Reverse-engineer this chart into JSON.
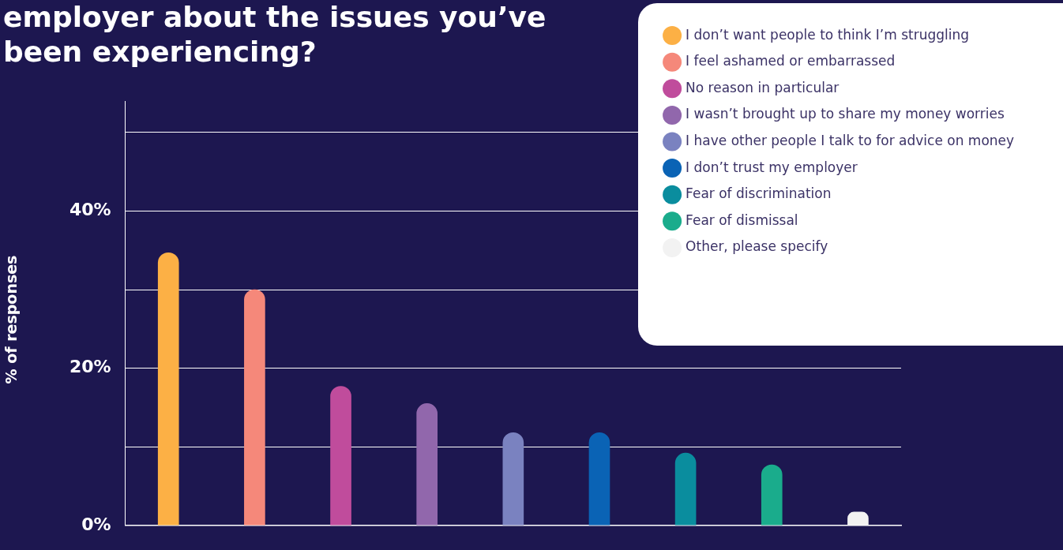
{
  "chart_data": {
    "type": "bar",
    "title": "employer about the issues you’ve been experiencing?",
    "ylabel": "% of responses",
    "categories": [
      null,
      null,
      null,
      null,
      null,
      null,
      null,
      null,
      null
    ],
    "series": [
      {
        "name": "I don’t want people to think I’m struggling",
        "color": "#fcb045",
        "values": [
          34.7,
          null,
          null,
          null,
          null,
          null,
          null,
          null,
          null
        ]
      },
      {
        "name": "I feel ashamed or embarrassed",
        "color": "#f5887a",
        "values": [
          null,
          30,
          null,
          null,
          null,
          null,
          null,
          null,
          null
        ]
      },
      {
        "name": "No reason in particular",
        "color": "#c04c9c",
        "values": [
          null,
          null,
          17.7,
          null,
          null,
          null,
          null,
          null,
          null
        ]
      },
      {
        "name": "I wasn’t brought up to share my money worries",
        "color": "#9167ac",
        "values": [
          null,
          null,
          null,
          15.5,
          null,
          null,
          null,
          null,
          null
        ]
      },
      {
        "name": "I have other people I talk to for advice on money",
        "color": "#7a82c0",
        "values": [
          null,
          null,
          null,
          null,
          11.8,
          null,
          null,
          null,
          null
        ]
      },
      {
        "name": "I don’t trust my employer",
        "color": "#0a63b5",
        "values": [
          null,
          null,
          null,
          null,
          null,
          11.8,
          null,
          null,
          null
        ]
      },
      {
        "name": "Fear of discrimination",
        "color": "#0a8d9e",
        "values": [
          null,
          null,
          null,
          null,
          null,
          null,
          9.2,
          null,
          null
        ]
      },
      {
        "name": "Fear of dismissal",
        "color": "#1aac8c",
        "values": [
          null,
          null,
          null,
          null,
          null,
          null,
          null,
          7.7,
          null
        ]
      },
      {
        "name": "Other, please specify",
        "color": "#f2f2f2",
        "values": [
          null,
          null,
          null,
          null,
          null,
          null,
          null,
          null,
          1.7
        ]
      }
    ],
    "ylim": [
      0,
      54
    ],
    "yticks": [
      {
        "value": 0,
        "label": "0%"
      },
      {
        "value": 10,
        "label": null
      },
      {
        "value": 20,
        "label": "20%"
      },
      {
        "value": 30,
        "label": null
      },
      {
        "value": 40,
        "label": "40%"
      },
      {
        "value": 50,
        "label": null
      }
    ],
    "grid": "y",
    "legend": "top right"
  }
}
